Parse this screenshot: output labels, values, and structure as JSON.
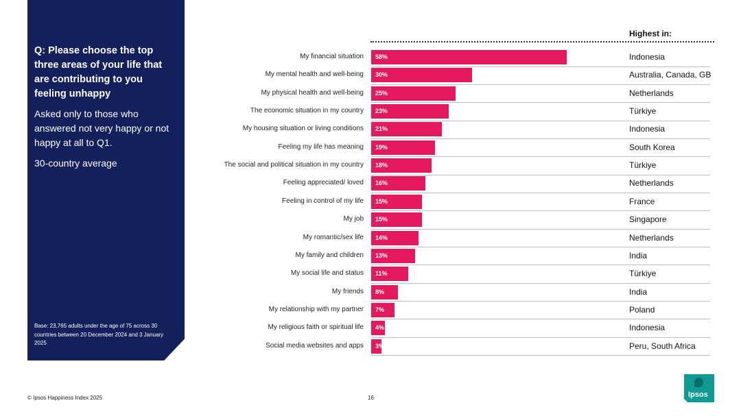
{
  "panel": {
    "question": "Q: Please choose the top three areas of your life that are contributing to you feeling unhappy",
    "subtext": "Asked only to those who answered not very happy or not happy at all to Q1.",
    "average_label": "30-country average",
    "base_note": "Base: 23,765 adults under the age of 75 across 30 countries between 20 December 2024 and 3 January 2025"
  },
  "highest_in_title": "Highest in:",
  "footer": {
    "copyright": "© Ipsos Happiness Index 2025",
    "page_number": "16",
    "logo_text": "Ipsos"
  },
  "colors": {
    "panel": "#13205b",
    "bar": "#e3195b",
    "logo": "#0f9a94"
  },
  "chart_data": {
    "type": "bar",
    "orientation": "horizontal",
    "categories": [
      "My financial situation",
      "My mental health and well-being",
      "My physical health and well-being",
      "The economic situation in my country",
      "My housing situation or living conditions",
      "Feeling my life has meaning",
      "The social and political situation in my country",
      "Feeling appreciated/ loved",
      "Feeling in control of my life",
      "My job",
      "My romantic/sex life",
      "My family and children",
      "My social life and status",
      "My friends",
      "My relationship with my partner",
      "My religious faith or spiritual life",
      "Social media websites and apps"
    ],
    "values": [
      58,
      30,
      25,
      23,
      21,
      19,
      18,
      16,
      15,
      15,
      14,
      13,
      11,
      8,
      7,
      4,
      3
    ],
    "value_labels": [
      "58%",
      "30%",
      "25%",
      "23%",
      "21%",
      "19%",
      "18%",
      "16%",
      "15%",
      "15%",
      "14%",
      "13%",
      "11%",
      "8%",
      "7%",
      "4%",
      "3%"
    ],
    "highest_in": [
      "Indonesia",
      "Australia, Canada, GB",
      "Netherlands",
      "Türkiye",
      "Indonesia",
      "South Korea",
      "Türkiye",
      "Netherlands",
      "France",
      "Singapore",
      "Netherlands",
      "India",
      "Türkiye",
      "India",
      "Poland",
      "Indonesia",
      "Peru, South Africa"
    ],
    "unit": "%",
    "xlim": [
      0,
      100
    ],
    "grid": false
  }
}
